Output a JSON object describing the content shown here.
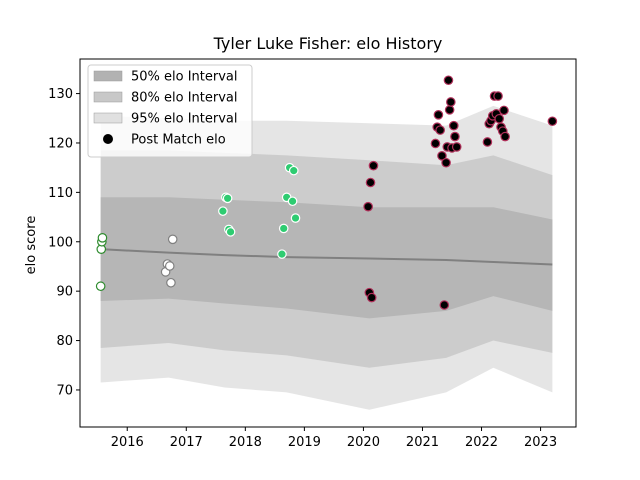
{
  "chart_data": {
    "type": "scatter",
    "title": "Tyler Luke Fisher: elo History",
    "xlabel": "",
    "ylabel": "elo score",
    "xlim": [
      2015.2,
      2023.6
    ],
    "ylim": [
      62.5,
      137
    ],
    "x_ticks": [
      2016,
      2017,
      2018,
      2019,
      2020,
      2021,
      2022,
      2023
    ],
    "y_ticks": [
      70,
      80,
      90,
      100,
      110,
      120,
      130
    ],
    "grid": false,
    "legend_position": "upper-left",
    "legend": [
      {
        "label": "50% elo Interval",
        "kind": "band",
        "color": "#b2b2b2"
      },
      {
        "label": "80% elo Interval",
        "kind": "band",
        "color": "#c8c8c8"
      },
      {
        "label": "95% elo Interval",
        "kind": "band",
        "color": "#e0e0e0"
      },
      {
        "label": "Post Match elo",
        "kind": "marker",
        "color": "#000000"
      }
    ],
    "rating_line": {
      "color": "#808080",
      "x": [
        2015.55,
        2016.7,
        2017.65,
        2018.7,
        2020.1,
        2021.4,
        2022.2,
        2023.2
      ],
      "y": [
        98.5,
        97.8,
        97.3,
        96.9,
        96.6,
        96.3,
        95.9,
        95.4
      ]
    },
    "intervals": [
      {
        "name": "95% elo Interval",
        "color": "#e0e0e0",
        "x": [
          2015.55,
          2016.7,
          2017.65,
          2018.7,
          2020.1,
          2021.4,
          2022.2,
          2023.2
        ],
        "upper": [
          125.5,
          125.0,
          124.5,
          124.5,
          124.0,
          123.5,
          127.5,
          123.5
        ],
        "lower": [
          71.5,
          72.5,
          70.5,
          69.5,
          66.0,
          69.5,
          74.5,
          69.5
        ]
      },
      {
        "name": "80% elo Interval",
        "color": "#c8c8c8",
        "x": [
          2015.55,
          2016.7,
          2017.65,
          2018.7,
          2020.1,
          2021.4,
          2022.2,
          2023.2
        ],
        "upper": [
          118.5,
          118.5,
          118.0,
          117.5,
          116.5,
          115.5,
          117.5,
          113.5
        ],
        "lower": [
          78.5,
          79.5,
          78.0,
          77.0,
          74.5,
          76.5,
          80.0,
          77.5
        ]
      },
      {
        "name": "50% elo Interval",
        "color": "#b2b2b2",
        "x": [
          2015.55,
          2016.7,
          2017.65,
          2018.7,
          2020.1,
          2021.4,
          2022.2,
          2023.2
        ],
        "upper": [
          109.0,
          109.0,
          108.5,
          108.0,
          107.0,
          107.0,
          107.0,
          104.5
        ],
        "lower": [
          88.0,
          88.5,
          87.5,
          86.5,
          84.5,
          86.0,
          89.0,
          86.0
        ]
      }
    ],
    "series": [
      {
        "marker_fill": "#ffffff",
        "marker_edge": "#2e8b2e",
        "x": [
          2015.55,
          2015.56,
          2015.57,
          2015.58
        ],
        "y": [
          91.0,
          98.5,
          100.0,
          100.8
        ]
      },
      {
        "marker_fill": "#ffffff",
        "marker_edge": "#808080",
        "x": [
          2016.65,
          2016.68,
          2016.72,
          2016.74,
          2016.77
        ],
        "y": [
          93.9,
          95.5,
          95.1,
          91.7,
          100.5
        ]
      },
      {
        "marker_fill": "#2ecc71",
        "marker_edge": "#ffffff",
        "x": [
          2017.62,
          2017.67,
          2017.7,
          2017.72,
          2017.75,
          2018.62,
          2018.65,
          2018.7,
          2018.75,
          2018.8,
          2018.82,
          2018.85
        ],
        "y": [
          106.2,
          109.0,
          108.8,
          102.5,
          102.0,
          97.5,
          102.7,
          109.0,
          115.0,
          108.2,
          114.4,
          104.8
        ]
      },
      {
        "marker_fill": "#000000",
        "marker_edge": "#b0305a",
        "x": [
          2020.08,
          2020.1,
          2020.12,
          2020.14,
          2020.17,
          2021.22,
          2021.25,
          2021.27,
          2021.3,
          2021.33,
          2021.37,
          2021.4,
          2021.42,
          2021.44,
          2021.46,
          2021.48,
          2021.5,
          2021.53,
          2021.55,
          2021.58,
          2022.1,
          2022.13,
          2022.16,
          2022.19,
          2022.22,
          2022.25,
          2022.28,
          2022.3,
          2022.33,
          2022.36,
          2022.38,
          2022.4,
          2023.2
        ],
        "y": [
          107.1,
          89.7,
          112.0,
          88.7,
          115.4,
          119.9,
          123.2,
          125.7,
          122.6,
          117.4,
          87.2,
          116.0,
          119.2,
          132.7,
          126.7,
          128.3,
          119.0,
          123.5,
          121.3,
          119.2,
          120.2,
          123.9,
          124.5,
          125.5,
          129.5,
          125.9,
          129.5,
          124.9,
          123.2,
          122.4,
          126.6,
          121.3,
          124.4
        ]
      }
    ]
  }
}
